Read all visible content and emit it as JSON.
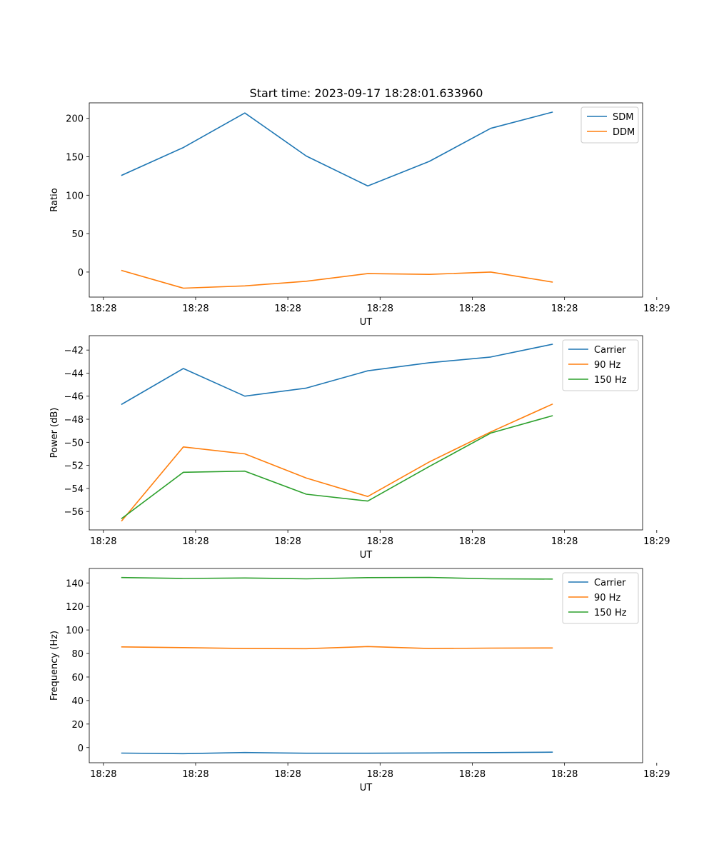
{
  "figure": {
    "title": "Start time: 2023-09-17 18:28:01.633960"
  },
  "colors": {
    "blue": "#1f77b4",
    "orange": "#ff7f0e",
    "green": "#2ca02c"
  },
  "chart_data": [
    {
      "type": "line",
      "title": "Start time: 2023-09-17 18:28:01.633960",
      "xlabel": "UT",
      "ylabel": "Ratio",
      "x": [
        1,
        2,
        3,
        4,
        5,
        6,
        7,
        8
      ],
      "xlim": [
        0.47,
        9.47
      ],
      "xticks": [
        0.7,
        2.2,
        3.7,
        5.2,
        6.7,
        8.2,
        9.7
      ],
      "xtick_labels": [
        "18:28",
        "18:28",
        "18:28",
        "18:28",
        "18:28",
        "18:28",
        "18:29"
      ],
      "ylim": [
        -32.6,
        220.2
      ],
      "yticks": [
        0,
        50,
        100,
        150,
        200
      ],
      "ytick_labels": [
        "0",
        "50",
        "100",
        "150",
        "200"
      ],
      "legend_position": "top-right",
      "series": [
        {
          "name": "SDM",
          "color": "#1f77b4",
          "values": [
            126,
            162,
            207,
            151,
            112,
            144,
            187,
            208
          ]
        },
        {
          "name": "DDM",
          "color": "#ff7f0e",
          "values": [
            2,
            -21,
            -18,
            -12,
            -2,
            -3,
            0,
            -13
          ]
        }
      ]
    },
    {
      "type": "line",
      "title": "",
      "xlabel": "UT",
      "ylabel": "Power (dB)",
      "x": [
        1,
        2,
        3,
        4,
        5,
        6,
        7,
        8
      ],
      "xlim": [
        0.47,
        9.47
      ],
      "xticks": [
        0.7,
        2.2,
        3.7,
        5.2,
        6.7,
        8.2,
        9.7
      ],
      "xtick_labels": [
        "18:28",
        "18:28",
        "18:28",
        "18:28",
        "18:28",
        "18:28",
        "18:29"
      ],
      "ylim": [
        -57.6,
        -40.75
      ],
      "yticks": [
        -56,
        -54,
        -52,
        -50,
        -48,
        -46,
        -44,
        -42
      ],
      "ytick_labels": [
        "−56",
        "−54",
        "−52",
        "−50",
        "−48",
        "−46",
        "−44",
        "−42"
      ],
      "legend_position": "top-right",
      "series": [
        {
          "name": "Carrier",
          "color": "#1f77b4",
          "values": [
            -46.7,
            -43.6,
            -46.0,
            -45.3,
            -43.8,
            -43.1,
            -42.6,
            -41.5
          ]
        },
        {
          "name": "90 Hz",
          "color": "#ff7f0e",
          "values": [
            -56.8,
            -50.4,
            -51.0,
            -53.1,
            -54.7,
            -51.7,
            -49.1,
            -46.7
          ]
        },
        {
          "name": "150 Hz",
          "color": "#2ca02c",
          "values": [
            -56.6,
            -52.6,
            -52.5,
            -54.5,
            -55.1,
            -52.1,
            -49.2,
            -47.7
          ]
        }
      ]
    },
    {
      "type": "line",
      "title": "",
      "xlabel": "UT",
      "ylabel": "Frequency (Hz)",
      "x": [
        1,
        2,
        3,
        4,
        5,
        6,
        7,
        8
      ],
      "xlim": [
        0.47,
        9.47
      ],
      "xticks": [
        0.7,
        2.2,
        3.7,
        5.2,
        6.7,
        8.2,
        9.7
      ],
      "xtick_labels": [
        "18:28",
        "18:28",
        "18:28",
        "18:28",
        "18:28",
        "18:28",
        "18:29"
      ],
      "ylim": [
        -12.9,
        152.3
      ],
      "yticks": [
        0,
        20,
        40,
        60,
        80,
        100,
        120,
        140
      ],
      "ytick_labels": [
        "0",
        "20",
        "40",
        "60",
        "80",
        "100",
        "120",
        "140"
      ],
      "legend_position": "top-right",
      "series": [
        {
          "name": "Carrier",
          "color": "#1f77b4",
          "values": [
            -4.7,
            -5.2,
            -4.2,
            -4.8,
            -4.8,
            -4.6,
            -4.3,
            -3.9
          ]
        },
        {
          "name": "90 Hz",
          "color": "#ff7f0e",
          "values": [
            85.6,
            85.0,
            84.2,
            84.1,
            85.9,
            84.2,
            84.6,
            84.7
          ]
        },
        {
          "name": "150 Hz",
          "color": "#2ca02c",
          "values": [
            144.6,
            143.8,
            144.2,
            143.5,
            144.5,
            144.7,
            143.5,
            143.3
          ]
        }
      ]
    }
  ]
}
